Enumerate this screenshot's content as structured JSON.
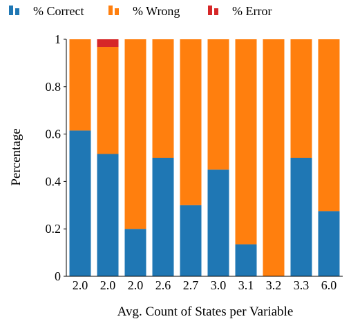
{
  "chart_data": {
    "type": "bar",
    "stacked": true,
    "xlabel": "Avg. Count of States per Variable",
    "ylabel": "Percentage",
    "ylim": [
      0,
      1
    ],
    "yticks": [
      0,
      0.2,
      0.4,
      0.6,
      0.8,
      1
    ],
    "ytick_labels": [
      "0",
      "0.2",
      "0.4",
      "0.6",
      "0.8",
      "1"
    ],
    "categories": [
      "2.0",
      "2.0",
      "2.0",
      "2.6",
      "2.7",
      "3.0",
      "3.1",
      "3.2",
      "3.3",
      "6.0"
    ],
    "legend_position": "top",
    "series": [
      {
        "name": "% Correct",
        "color": "#1f77b4",
        "values": [
          0.615,
          0.516,
          0.2,
          0.5,
          0.3,
          0.45,
          0.135,
          0.0,
          0.5,
          0.275
        ]
      },
      {
        "name": "% Wrong",
        "color": "#ff7f0e",
        "values": [
          0.385,
          0.452,
          0.8,
          0.5,
          0.7,
          0.55,
          0.865,
          1.0,
          0.5,
          0.725
        ]
      },
      {
        "name": "% Error",
        "color": "#d62728",
        "values": [
          0.0,
          0.032,
          0.0,
          0.0,
          0.0,
          0.0,
          0.0,
          0.0,
          0.0,
          0.0
        ]
      }
    ],
    "grid": false
  }
}
